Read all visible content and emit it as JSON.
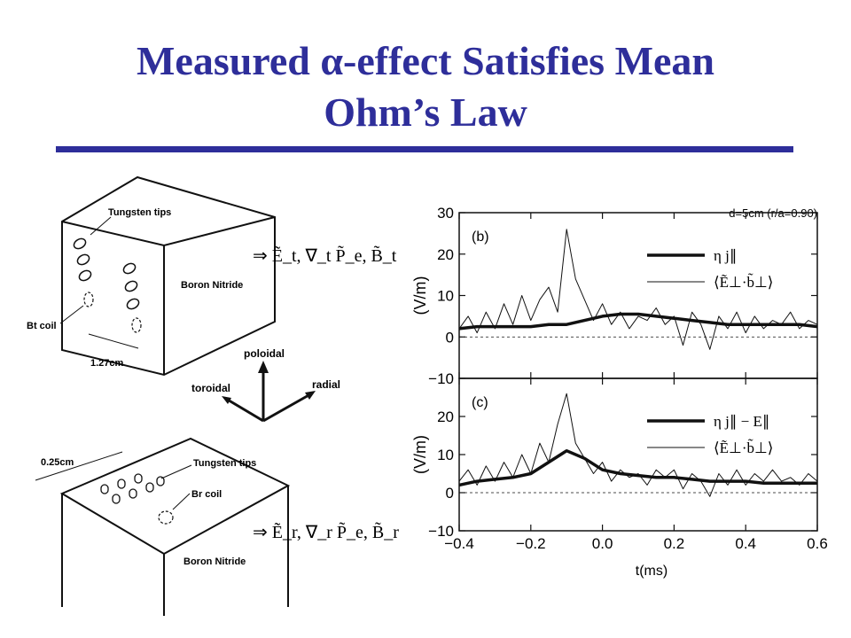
{
  "slide": {
    "title_line1": "Measured α-effect Satisfies Mean",
    "title_line2": "Ohm’s Law",
    "title_color": "#2e2e9a"
  },
  "probe_diagram": {
    "top_probe": {
      "tips_label": "Tungsten tips",
      "material_label": "Boron Nitride",
      "coil_label": "Bt coil",
      "dimension_label": "1.27cm",
      "measured": "⇒ Ẽ_t, ∇_t P̃_e, B̃_t"
    },
    "axes": {
      "up": "poloidal",
      "left": "toroidal",
      "right": "radial"
    },
    "bottom_probe": {
      "tips_label": "Tungsten tips",
      "material_label": "Boron Nitride",
      "coil_label": "Br coil",
      "dimension_label": "0.25cm",
      "measured": "⇒ Ẽ_r, ∇_r P̃_e, B̃_r"
    }
  },
  "chart_data": {
    "type": "line",
    "annotation": "d=5cm (r/a=0.90)",
    "xlabel": "t(ms)",
    "x_ticks": [
      "-0.4",
      "-0.2",
      "0.0",
      "0.2",
      "0.4",
      "0.6"
    ],
    "xlim": [
      -0.4,
      0.6
    ],
    "panels": [
      {
        "panel_label": "(b)",
        "ylabel": "(V/m)",
        "ylim": [
          -10,
          30
        ],
        "y_ticks": [
          "30",
          "20",
          "10",
          "0",
          "−10"
        ],
        "series": [
          {
            "name": "η j∥",
            "style": "thick",
            "x": [
              -0.4,
              -0.35,
              -0.3,
              -0.25,
              -0.2,
              -0.15,
              -0.1,
              -0.05,
              0.0,
              0.05,
              0.1,
              0.15,
              0.2,
              0.25,
              0.3,
              0.35,
              0.4,
              0.45,
              0.5,
              0.55,
              0.6
            ],
            "values": [
              2,
              2.5,
              2.5,
              2.5,
              2.5,
              3,
              3,
              4,
              5,
              5.5,
              5.5,
              5,
              4.5,
              4,
              3.5,
              3,
              3,
              3,
              3,
              3,
              2.5
            ]
          },
          {
            "name": "⟨Ẽ⊥·b̃⊥⟩",
            "style": "thin",
            "x": [
              -0.4,
              -0.375,
              -0.35,
              -0.325,
              -0.3,
              -0.275,
              -0.25,
              -0.225,
              -0.2,
              -0.175,
              -0.15,
              -0.125,
              -0.1,
              -0.075,
              -0.05,
              -0.025,
              0.0,
              0.025,
              0.05,
              0.075,
              0.1,
              0.125,
              0.15,
              0.175,
              0.2,
              0.225,
              0.25,
              0.275,
              0.3,
              0.325,
              0.35,
              0.375,
              0.4,
              0.425,
              0.45,
              0.475,
              0.5,
              0.525,
              0.55,
              0.575,
              0.6
            ],
            "values": [
              2,
              5,
              1,
              6,
              2,
              8,
              3,
              10,
              4,
              9,
              12,
              6,
              26,
              14,
              9,
              4,
              8,
              3,
              6,
              2,
              5,
              4,
              7,
              3,
              5,
              -2,
              6,
              3,
              -3,
              5,
              2,
              6,
              1,
              5,
              2,
              4,
              3,
              6,
              2,
              4,
              3
            ]
          }
        ]
      },
      {
        "panel_label": "(c)",
        "ylabel": "(V/m)",
        "ylim": [
          -10,
          30
        ],
        "y_ticks": [
          "20",
          "10",
          "0",
          "−10"
        ],
        "series": [
          {
            "name": "η j∥ − E∥",
            "style": "thick",
            "x": [
              -0.4,
              -0.35,
              -0.3,
              -0.25,
              -0.2,
              -0.15,
              -0.1,
              -0.05,
              0.0,
              0.05,
              0.1,
              0.15,
              0.2,
              0.25,
              0.3,
              0.35,
              0.4,
              0.45,
              0.5,
              0.55,
              0.6
            ],
            "values": [
              2,
              3,
              3.5,
              4,
              5,
              8,
              11,
              9,
              6,
              5,
              4.5,
              4,
              4,
              3.5,
              3,
              3,
              3,
              2.5,
              2.5,
              2.5,
              2.5
            ]
          },
          {
            "name": "⟨Ẽ⊥·b̃⊥⟩",
            "style": "thin",
            "x": [
              -0.4,
              -0.375,
              -0.35,
              -0.325,
              -0.3,
              -0.275,
              -0.25,
              -0.225,
              -0.2,
              -0.175,
              -0.15,
              -0.125,
              -0.1,
              -0.075,
              -0.05,
              -0.025,
              0.0,
              0.025,
              0.05,
              0.075,
              0.1,
              0.125,
              0.15,
              0.175,
              0.2,
              0.225,
              0.25,
              0.275,
              0.3,
              0.325,
              0.35,
              0.375,
              0.4,
              0.425,
              0.45,
              0.475,
              0.5,
              0.525,
              0.55,
              0.575,
              0.6
            ],
            "values": [
              3,
              6,
              2,
              7,
              3,
              8,
              4,
              10,
              5,
              13,
              8,
              18,
              26,
              13,
              9,
              5,
              8,
              3,
              6,
              4,
              5,
              2,
              6,
              4,
              6,
              1,
              5,
              3,
              -1,
              5,
              2,
              6,
              2,
              5,
              3,
              6,
              3,
              4,
              2,
              5,
              3
            ]
          }
        ]
      }
    ]
  }
}
